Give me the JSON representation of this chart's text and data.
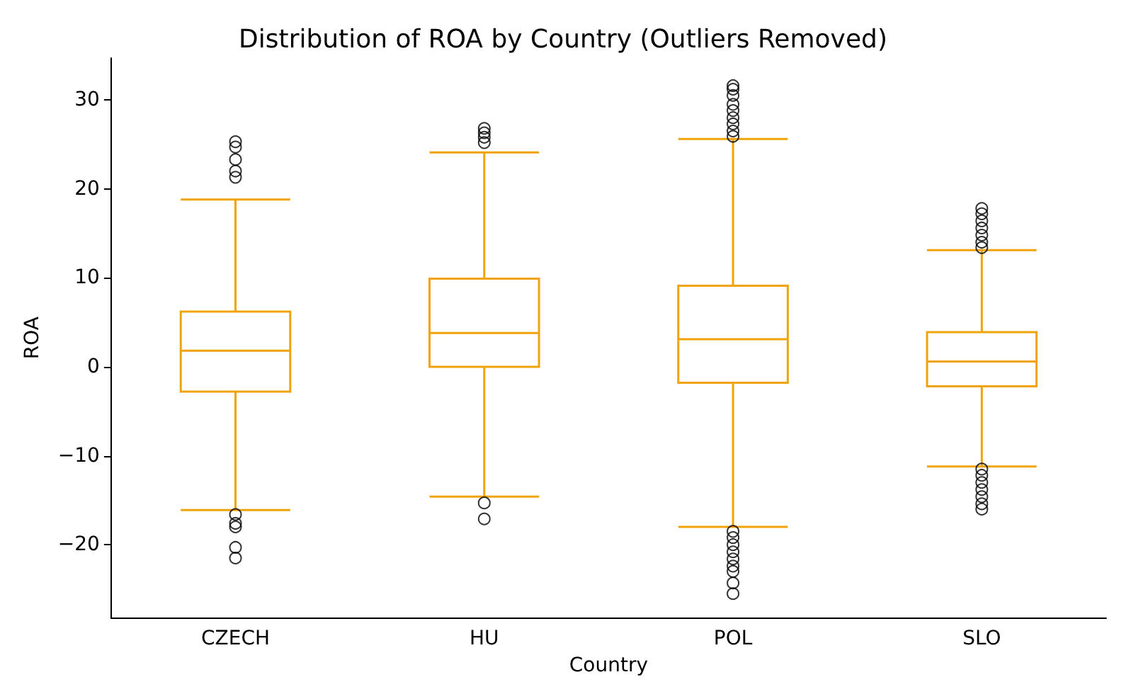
{
  "chart_data": {
    "type": "box",
    "title": "Distribution of ROA by Country (Outliers Removed)",
    "xlabel": "Country",
    "ylabel": "ROA",
    "categories": [
      "CZECH",
      "HU",
      "POL",
      "SLO"
    ],
    "color": "#f0a30a",
    "boxes": [
      {
        "low": -16.1,
        "q1": -2.8,
        "median": 1.8,
        "q3": 6.2,
        "high": 18.8,
        "outliers": [
          25.3,
          24.7,
          23.3,
          22.0,
          21.3,
          -16.6,
          -17.6,
          -18.0,
          -20.3,
          -21.5
        ]
      },
      {
        "low": -14.6,
        "q1": 0,
        "median": 3.8,
        "q3": 9.9,
        "high": 24.1,
        "outliers": [
          26.8,
          26.3,
          25.8,
          25.2,
          -15.3,
          -17.1
        ]
      },
      {
        "low": -18.0,
        "q1": -1.8,
        "median": 3.1,
        "q3": 9.1,
        "high": 25.6,
        "outliers": [
          31.6,
          31.2,
          30.5,
          29.5,
          28.8,
          28.0,
          27.3,
          26.5,
          25.9,
          -18.5,
          -19.2,
          -20.0,
          -20.8,
          -21.6,
          -22.4,
          -23.0,
          -24.3,
          -25.5
        ]
      },
      {
        "low": -11.2,
        "q1": -2.2,
        "median": 0.6,
        "q3": 3.9,
        "high": 13.1,
        "outliers": [
          17.8,
          17.2,
          16.4,
          15.6,
          14.8,
          14.0,
          13.4,
          -11.5,
          -12.2,
          -13.0,
          -13.8,
          -14.6,
          -15.4,
          -16.0
        ]
      }
    ],
    "ylim": [
      -28.2,
      34.7
    ],
    "yticks": [
      -20,
      -10,
      0,
      10,
      20,
      30
    ],
    "grid": false,
    "marker": "circle"
  }
}
